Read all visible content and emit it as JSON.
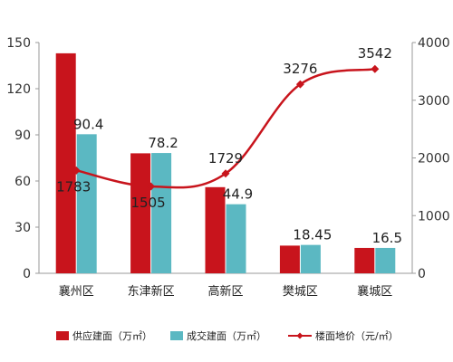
{
  "chart_data": {
    "type": "bar",
    "categories": [
      "襄州区",
      "东津新区",
      "高新区",
      "樊城区",
      "襄城区"
    ],
    "series": [
      {
        "name": "供应建面（万㎡）",
        "kind": "bar",
        "axis": "left",
        "color": "#c8141c",
        "values": [
          143,
          78,
          56,
          18,
          16.5
        ],
        "labels": [
          "",
          "",
          "",
          "",
          ""
        ]
      },
      {
        "name": "成交建面（万㎡）",
        "kind": "bar",
        "axis": "left",
        "color": "#5bb8c2",
        "values": [
          90.4,
          78.2,
          44.9,
          18.45,
          16.5
        ],
        "labels": [
          "90.4",
          "78.2",
          "44.9",
          "18.45",
          "16.5"
        ]
      },
      {
        "name": "楼面地价（元/㎡）",
        "kind": "line",
        "axis": "right",
        "color": "#c8141c",
        "values": [
          1783,
          1505,
          1729,
          3276,
          3542
        ],
        "labels": [
          "1783",
          "1505",
          "1729",
          "3276",
          "3542"
        ]
      }
    ],
    "y_left": {
      "ylim": [
        0,
        150
      ],
      "ticks": [
        "0",
        "30",
        "60",
        "90",
        "120",
        "150"
      ]
    },
    "y_right": {
      "ylim": [
        0,
        4000
      ],
      "ticks": [
        "0",
        "1000",
        "2000",
        "3000",
        "4000"
      ]
    },
    "grid": false,
    "legend": "bottom"
  }
}
